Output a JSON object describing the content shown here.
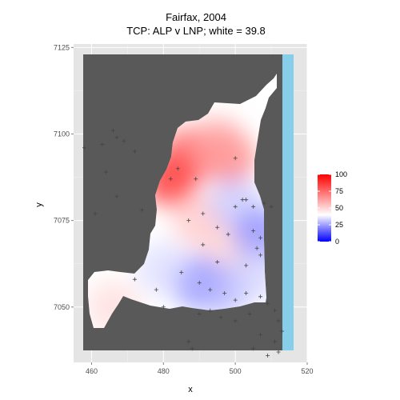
{
  "chart_data": {
    "type": "heatmap",
    "title": "Fairfax, 2004",
    "subtitle": "TCP: ALP v LNP; white = 39.8",
    "xlabel": "x",
    "ylabel": "y",
    "xlim": [
      455,
      520
    ],
    "ylim": [
      7034,
      7126
    ],
    "x_ticks": [
      "460",
      "480",
      "500",
      "520"
    ],
    "y_ticks": [
      "7050",
      "7075",
      "7100",
      "7125"
    ],
    "x_tick_values": [
      460,
      480,
      500,
      520
    ],
    "y_tick_values": [
      7050,
      7075,
      7100,
      7125
    ],
    "background_color": "#e5e5e5",
    "grid": true,
    "land_color": "#595959",
    "sea_color": "#87ceeb",
    "low_color": "#0000ff",
    "mid_color": "#ffffff",
    "high_color": "#ff0000",
    "color_midpoint": 39.8,
    "legend": {
      "position": "right",
      "range": [
        0,
        100
      ],
      "labels": [
        "100",
        "75",
        "50",
        "25",
        "0"
      ],
      "values": [
        100,
        75,
        50,
        25,
        0
      ]
    },
    "hotspots": [
      {
        "x": 487,
        "y": 7094,
        "value": 75
      },
      {
        "x": 498,
        "y": 7093,
        "value": 70
      },
      {
        "x": 482,
        "y": 7087,
        "value": 82
      },
      {
        "x": 495,
        "y": 7097,
        "value": 62
      },
      {
        "x": 490,
        "y": 7075,
        "value": 55
      },
      {
        "x": 498,
        "y": 7067,
        "value": 52
      },
      {
        "x": 466,
        "y": 7050,
        "value": 50
      },
      {
        "x": 500,
        "y": 7080,
        "value": 30
      },
      {
        "x": 507,
        "y": 7071,
        "value": 22
      },
      {
        "x": 490,
        "y": 7057,
        "value": 22
      },
      {
        "x": 497,
        "y": 7055,
        "value": 28
      },
      {
        "x": 480,
        "y": 7061,
        "value": 33
      },
      {
        "x": 506,
        "y": 7060,
        "value": 32
      }
    ],
    "booths": [
      {
        "x": 482,
        "y": 7087
      },
      {
        "x": 484,
        "y": 7090
      },
      {
        "x": 500,
        "y": 7093
      },
      {
        "x": 489,
        "y": 7087
      },
      {
        "x": 502,
        "y": 7081
      },
      {
        "x": 503,
        "y": 7081
      },
      {
        "x": 500,
        "y": 7079
      },
      {
        "x": 505,
        "y": 7079
      },
      {
        "x": 508,
        "y": 7080
      },
      {
        "x": 510,
        "y": 7079
      },
      {
        "x": 491,
        "y": 7077
      },
      {
        "x": 487,
        "y": 7075
      },
      {
        "x": 495,
        "y": 7073
      },
      {
        "x": 498,
        "y": 7071
      },
      {
        "x": 505,
        "y": 7072
      },
      {
        "x": 507,
        "y": 7070
      },
      {
        "x": 506,
        "y": 7067
      },
      {
        "x": 507,
        "y": 7065
      },
      {
        "x": 491,
        "y": 7068
      },
      {
        "x": 495,
        "y": 7063
      },
      {
        "x": 503,
        "y": 7062
      },
      {
        "x": 485,
        "y": 7060
      },
      {
        "x": 490,
        "y": 7057
      },
      {
        "x": 493,
        "y": 7055
      },
      {
        "x": 497,
        "y": 7054
      },
      {
        "x": 500,
        "y": 7052
      },
      {
        "x": 503,
        "y": 7054
      },
      {
        "x": 507,
        "y": 7053
      },
      {
        "x": 509,
        "y": 7051
      },
      {
        "x": 511,
        "y": 7049
      },
      {
        "x": 504,
        "y": 7048
      },
      {
        "x": 500,
        "y": 7046
      },
      {
        "x": 496,
        "y": 7047
      },
      {
        "x": 493,
        "y": 7049
      },
      {
        "x": 490,
        "y": 7048
      },
      {
        "x": 512,
        "y": 7046
      },
      {
        "x": 513,
        "y": 7043
      },
      {
        "x": 511,
        "y": 7040
      },
      {
        "x": 507,
        "y": 7042
      },
      {
        "x": 505,
        "y": 7038
      },
      {
        "x": 509,
        "y": 7036
      },
      {
        "x": 512,
        "y": 7037
      },
      {
        "x": 478,
        "y": 7055
      },
      {
        "x": 487,
        "y": 7040
      },
      {
        "x": 488,
        "y": 7038
      },
      {
        "x": 472,
        "y": 7058
      },
      {
        "x": 480,
        "y": 7050
      },
      {
        "x": 466,
        "y": 7101
      },
      {
        "x": 467,
        "y": 7099
      },
      {
        "x": 469,
        "y": 7098
      },
      {
        "x": 463,
        "y": 7097
      },
      {
        "x": 458,
        "y": 7096
      },
      {
        "x": 472,
        "y": 7095
      },
      {
        "x": 464,
        "y": 7089
      },
      {
        "x": 461,
        "y": 7077
      },
      {
        "x": 467,
        "y": 7082
      },
      {
        "x": 474,
        "y": 7078
      }
    ]
  }
}
